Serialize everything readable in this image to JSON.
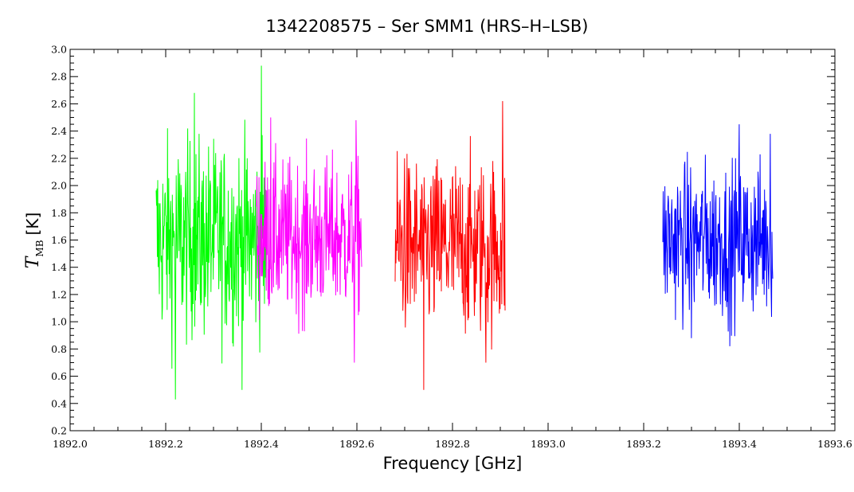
{
  "chart_data": {
    "type": "line",
    "title": "1342208575 – Ser SMM1 (HRS–H–LSB)",
    "xlabel": "Frequency [GHz]",
    "ylabel": {
      "main": "T",
      "sub": "MB",
      "unit": "[K]"
    },
    "xlim": [
      1892.0,
      1893.6
    ],
    "ylim": [
      0.2,
      3.0
    ],
    "x_ticks": [
      "1892.0",
      "1892.2",
      "1892.4",
      "1892.6",
      "1892.8",
      "1893.0",
      "1893.2",
      "1893.4",
      "1893.6"
    ],
    "y_ticks": [
      "0.2",
      "0.4",
      "0.6",
      "0.8",
      "1.0",
      "1.2",
      "1.4",
      "1.6",
      "1.8",
      "2.0",
      "2.2",
      "2.4",
      "2.6",
      "2.8",
      "3.0"
    ],
    "grid": false,
    "legend": "none",
    "series": [
      {
        "color": "#00ff00",
        "x_start": 1892.18,
        "x_end": 1892.41,
        "count": 280,
        "mean": 1.6,
        "spread": 0.42,
        "min": 0.43,
        "max": 2.88,
        "extremes": [
          [
            1892.4,
            2.88
          ],
          [
            1892.22,
            0.43
          ],
          [
            1892.26,
            2.68
          ],
          [
            1892.36,
            0.5
          ]
        ]
      },
      {
        "color": "#ff00ff",
        "x_start": 1892.39,
        "x_end": 1892.61,
        "count": 260,
        "mean": 1.62,
        "spread": 0.33,
        "min": 0.7,
        "max": 2.5,
        "extremes": [
          [
            1892.42,
            2.5
          ],
          [
            1892.598,
            2.48
          ],
          [
            1892.595,
            0.7
          ],
          [
            1892.49,
            0.93
          ]
        ]
      },
      {
        "color": "#ff0000",
        "x_start": 1892.68,
        "x_end": 1892.91,
        "count": 270,
        "mean": 1.55,
        "spread": 0.38,
        "min": 0.5,
        "max": 2.62,
        "extremes": [
          [
            1892.905,
            2.62
          ],
          [
            1892.74,
            0.5
          ],
          [
            1892.7,
            2.2
          ],
          [
            1892.87,
            0.7
          ]
        ]
      },
      {
        "color": "#0000ff",
        "x_start": 1893.24,
        "x_end": 1893.47,
        "count": 270,
        "mean": 1.6,
        "spread": 0.33,
        "min": 0.82,
        "max": 2.45,
        "extremes": [
          [
            1893.4,
            2.45
          ],
          [
            1893.38,
            0.82
          ],
          [
            1893.465,
            2.38
          ],
          [
            1893.3,
            0.88
          ]
        ]
      }
    ]
  }
}
